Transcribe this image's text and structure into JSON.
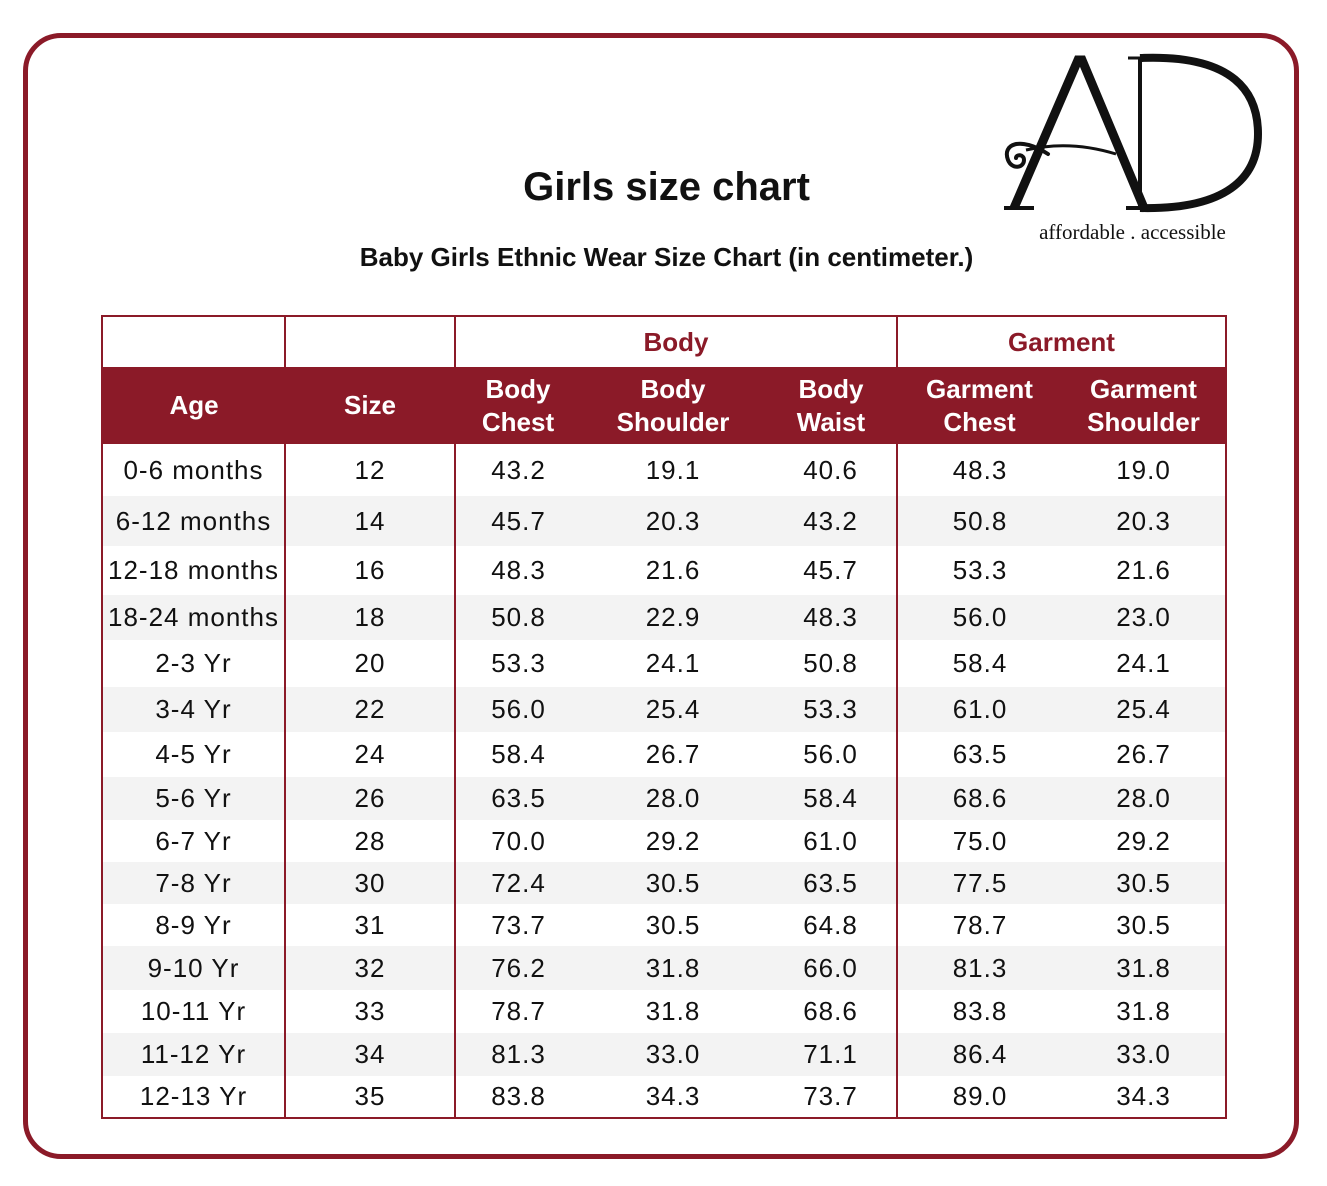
{
  "title": "Girls size chart",
  "subtitle": "Baby Girls Ethnic Wear Size Chart (in centimeter.)",
  "logo": {
    "mark": "AD",
    "tagline": "affordable . accessible"
  },
  "colors": {
    "accent": "#8b1a28",
    "stripe": "#f3f3f3"
  },
  "groups": {
    "body": "Body",
    "garment": "Garment"
  },
  "columns": {
    "age": "Age",
    "size": "Size",
    "body_chest": [
      "Body",
      "Chest"
    ],
    "body_shoulder": [
      "Body",
      "Shoulder"
    ],
    "body_waist": [
      "Body",
      "Waist"
    ],
    "garment_chest": [
      "Garment",
      "Chest"
    ],
    "garment_shoulder": [
      "Garment",
      "Shoulder"
    ]
  },
  "rows": [
    {
      "age": "0-6 months",
      "size": "12",
      "body_chest": "43.2",
      "body_shoulder": "19.1",
      "body_waist": "40.6",
      "garment_chest": "48.3",
      "garment_shoulder": "19.0"
    },
    {
      "age": "6-12 months",
      "size": "14",
      "body_chest": "45.7",
      "body_shoulder": "20.3",
      "body_waist": "43.2",
      "garment_chest": "50.8",
      "garment_shoulder": "20.3"
    },
    {
      "age": "12-18 months",
      "size": "16",
      "body_chest": "48.3",
      "body_shoulder": "21.6",
      "body_waist": "45.7",
      "garment_chest": "53.3",
      "garment_shoulder": "21.6"
    },
    {
      "age": "18-24 months",
      "size": "18",
      "body_chest": "50.8",
      "body_shoulder": "22.9",
      "body_waist": "48.3",
      "garment_chest": "56.0",
      "garment_shoulder": "23.0"
    },
    {
      "age": "2-3 Yr",
      "size": "20",
      "body_chest": "53.3",
      "body_shoulder": "24.1",
      "body_waist": "50.8",
      "garment_chest": "58.4",
      "garment_shoulder": "24.1"
    },
    {
      "age": "3-4 Yr",
      "size": "22",
      "body_chest": "56.0",
      "body_shoulder": "25.4",
      "body_waist": "53.3",
      "garment_chest": "61.0",
      "garment_shoulder": "25.4"
    },
    {
      "age": "4-5 Yr",
      "size": "24",
      "body_chest": "58.4",
      "body_shoulder": "26.7",
      "body_waist": "56.0",
      "garment_chest": "63.5",
      "garment_shoulder": "26.7"
    },
    {
      "age": "5-6 Yr",
      "size": "26",
      "body_chest": "63.5",
      "body_shoulder": "28.0",
      "body_waist": "58.4",
      "garment_chest": "68.6",
      "garment_shoulder": "28.0"
    },
    {
      "age": "6-7 Yr",
      "size": "28",
      "body_chest": "70.0",
      "body_shoulder": "29.2",
      "body_waist": "61.0",
      "garment_chest": "75.0",
      "garment_shoulder": "29.2"
    },
    {
      "age": "7-8 Yr",
      "size": "30",
      "body_chest": "72.4",
      "body_shoulder": "30.5",
      "body_waist": "63.5",
      "garment_chest": "77.5",
      "garment_shoulder": "30.5"
    },
    {
      "age": "8-9 Yr",
      "size": "31",
      "body_chest": "73.7",
      "body_shoulder": "30.5",
      "body_waist": "64.8",
      "garment_chest": "78.7",
      "garment_shoulder": "30.5"
    },
    {
      "age": "9-10 Yr",
      "size": "32",
      "body_chest": "76.2",
      "body_shoulder": "31.8",
      "body_waist": "66.0",
      "garment_chest": "81.3",
      "garment_shoulder": "31.8"
    },
    {
      "age": "10-11 Yr",
      "size": "33",
      "body_chest": "78.7",
      "body_shoulder": "31.8",
      "body_waist": "68.6",
      "garment_chest": "83.8",
      "garment_shoulder": "31.8"
    },
    {
      "age": "11-12 Yr",
      "size": "34",
      "body_chest": "81.3",
      "body_shoulder": "33.0",
      "body_waist": "71.1",
      "garment_chest": "86.4",
      "garment_shoulder": "33.0"
    },
    {
      "age": "12-13 Yr",
      "size": "35",
      "body_chest": "83.8",
      "body_shoulder": "34.3",
      "body_waist": "73.7",
      "garment_chest": "89.0",
      "garment_shoulder": "34.3"
    }
  ]
}
